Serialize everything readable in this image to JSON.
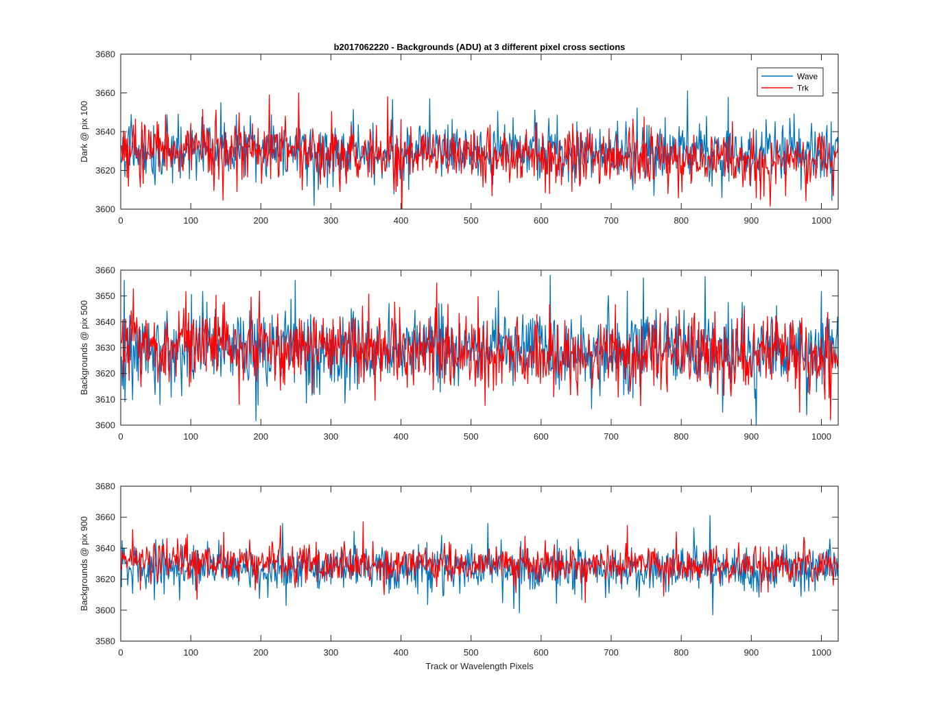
{
  "figure": {
    "title": "b2017062220 - Backgrounds (ADU) at 3 different pixel cross sections",
    "xlabel": "Track or Wavelength Pixels"
  },
  "colors": {
    "wave": "#0072BD",
    "trk": "#FF0000",
    "axis": "#262626"
  },
  "legend": {
    "entries": [
      "Wave",
      "Trk"
    ],
    "location": "top-right"
  },
  "chart_data": [
    {
      "type": "line",
      "ylabel": "Dark @ pix 100",
      "xlim": [
        0,
        1024
      ],
      "ylim": [
        3600,
        3680
      ],
      "xticks": [
        0,
        100,
        200,
        300,
        400,
        500,
        600,
        700,
        800,
        900,
        1000
      ],
      "yticks": [
        3600,
        3620,
        3640,
        3660,
        3680
      ],
      "grid": false,
      "n_points": 1024,
      "series": [
        {
          "name": "Wave",
          "color": "#0072BD",
          "mean": 3630,
          "noise_sd": 7,
          "extremes": [
            {
              "x": 275,
              "y": 3602
            },
            {
              "x": 808,
              "y": 3661
            },
            {
              "x": 142,
              "y": 3655
            },
            {
              "x": 440,
              "y": 3657
            },
            {
              "x": 760,
              "y": 3607
            }
          ]
        },
        {
          "name": "Trk",
          "color": "#FF0000",
          "mean": 3631,
          "noise_sd": 7,
          "trend_end": 3624,
          "extremes": [
            {
              "x": 253,
              "y": 3660
            },
            {
              "x": 380,
              "y": 3658
            },
            {
              "x": 165,
              "y": 3609
            },
            {
              "x": 912,
              "y": 3605
            },
            {
              "x": 1016,
              "y": 3607
            }
          ]
        }
      ]
    },
    {
      "type": "line",
      "ylabel": "Backgrounds @ pix 500",
      "xlim": [
        0,
        1024
      ],
      "ylim": [
        3600,
        3660
      ],
      "xticks": [
        0,
        100,
        200,
        300,
        400,
        500,
        600,
        700,
        800,
        900,
        1000
      ],
      "yticks": [
        3600,
        3610,
        3620,
        3630,
        3640,
        3650,
        3660
      ],
      "grid": false,
      "n_points": 1024,
      "series": [
        {
          "name": "Wave",
          "color": "#0072BD",
          "mean": 3630,
          "noise_sd": 7.5,
          "extremes": [
            {
              "x": 4,
              "y": 3656
            },
            {
              "x": 248,
              "y": 3656
            },
            {
              "x": 612,
              "y": 3658
            },
            {
              "x": 745,
              "y": 3657
            },
            {
              "x": 55,
              "y": 3608
            },
            {
              "x": 858,
              "y": 3605
            }
          ]
        },
        {
          "name": "Trk",
          "color": "#FF0000",
          "mean": 3632,
          "noise_sd": 7,
          "trend_end": 3625,
          "extremes": [
            {
              "x": 450,
              "y": 3655
            },
            {
              "x": 168,
              "y": 3608
            },
            {
              "x": 1012,
              "y": 3602
            },
            {
              "x": 968,
              "y": 3605
            }
          ]
        }
      ]
    },
    {
      "type": "line",
      "ylabel": "Backgrounds @ pix 900",
      "xlim": [
        0,
        1024
      ],
      "ylim": [
        3580,
        3680
      ],
      "xticks": [
        0,
        100,
        200,
        300,
        400,
        500,
        600,
        700,
        800,
        900,
        1000
      ],
      "yticks": [
        3580,
        3600,
        3620,
        3640,
        3660,
        3680
      ],
      "grid": false,
      "n_points": 1024,
      "series": [
        {
          "name": "Wave",
          "color": "#0072BD",
          "mean": 3627,
          "noise_sd": 7,
          "extremes": [
            {
              "x": 844,
              "y": 3597
            },
            {
              "x": 840,
              "y": 3661
            },
            {
              "x": 230,
              "y": 3656
            },
            {
              "x": 523,
              "y": 3656
            },
            {
              "x": 235,
              "y": 3603
            },
            {
              "x": 560,
              "y": 3601
            }
          ]
        },
        {
          "name": "Trk",
          "color": "#FF0000",
          "mean": 3632,
          "noise_sd": 6,
          "trend_end": 3628,
          "extremes": [
            {
              "x": 345,
              "y": 3657
            },
            {
              "x": 16,
              "y": 3652
            },
            {
              "x": 662,
              "y": 3605
            },
            {
              "x": 108,
              "y": 3607
            }
          ]
        }
      ]
    }
  ]
}
